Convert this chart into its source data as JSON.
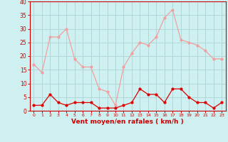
{
  "hours": [
    0,
    1,
    2,
    3,
    4,
    5,
    6,
    7,
    8,
    9,
    10,
    11,
    12,
    13,
    14,
    15,
    16,
    17,
    18,
    19,
    20,
    21,
    22,
    23
  ],
  "rafales": [
    17,
    14,
    27,
    27,
    30,
    19,
    16,
    16,
    8,
    7,
    2,
    16,
    21,
    25,
    24,
    27,
    34,
    37,
    26,
    25,
    24,
    22,
    19,
    19
  ],
  "moyen": [
    2,
    2,
    6,
    3,
    2,
    3,
    3,
    3,
    1,
    1,
    1,
    2,
    3,
    8,
    6,
    6,
    3,
    8,
    8,
    5,
    3,
    3,
    1,
    3
  ],
  "bg_color": "#cff0f0",
  "grid_color": "#b0d8d8",
  "line_color_rafales": "#f0a0a0",
  "line_color_moyen": "#dd0000",
  "xlabel": "Vent moyen/en rafales ( km/h )",
  "xlabel_color": "#cc0000",
  "tick_color": "#cc0000",
  "spine_color": "#cc0000",
  "ylim": [
    0,
    40
  ],
  "yticks": [
    0,
    5,
    10,
    15,
    20,
    25,
    30,
    35,
    40
  ],
  "xlim": [
    -0.5,
    23.5
  ]
}
